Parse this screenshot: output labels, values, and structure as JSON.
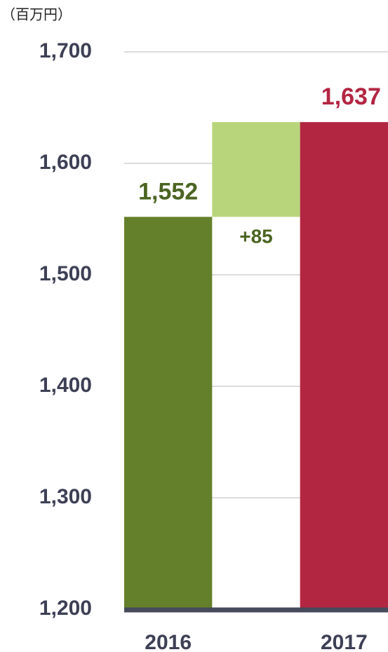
{
  "chart_data": {
    "type": "waterfall",
    "unit_label": "（百万円）",
    "categories": [
      "2016",
      null,
      "2017"
    ],
    "values": [
      1552,
      85,
      1637
    ],
    "value_labels": [
      "1,552",
      "+85",
      "1,637"
    ],
    "kinds": [
      "total",
      "delta",
      "total"
    ],
    "colors": [
      "#65802a",
      "#b9d57b",
      "#b32642"
    ],
    "label_colors": [
      "#4b6422",
      "#4b6422",
      "#b32642"
    ],
    "ylim": [
      1200,
      1700
    ],
    "yticks": [
      {
        "value": 1200,
        "label": "1,200"
      },
      {
        "value": 1300,
        "label": "1,300"
      },
      {
        "value": 1400,
        "label": "1,400"
      },
      {
        "value": 1500,
        "label": "1,500"
      },
      {
        "value": 1600,
        "label": "1,600"
      },
      {
        "value": 1700,
        "label": "1,700"
      }
    ],
    "grid": true
  }
}
